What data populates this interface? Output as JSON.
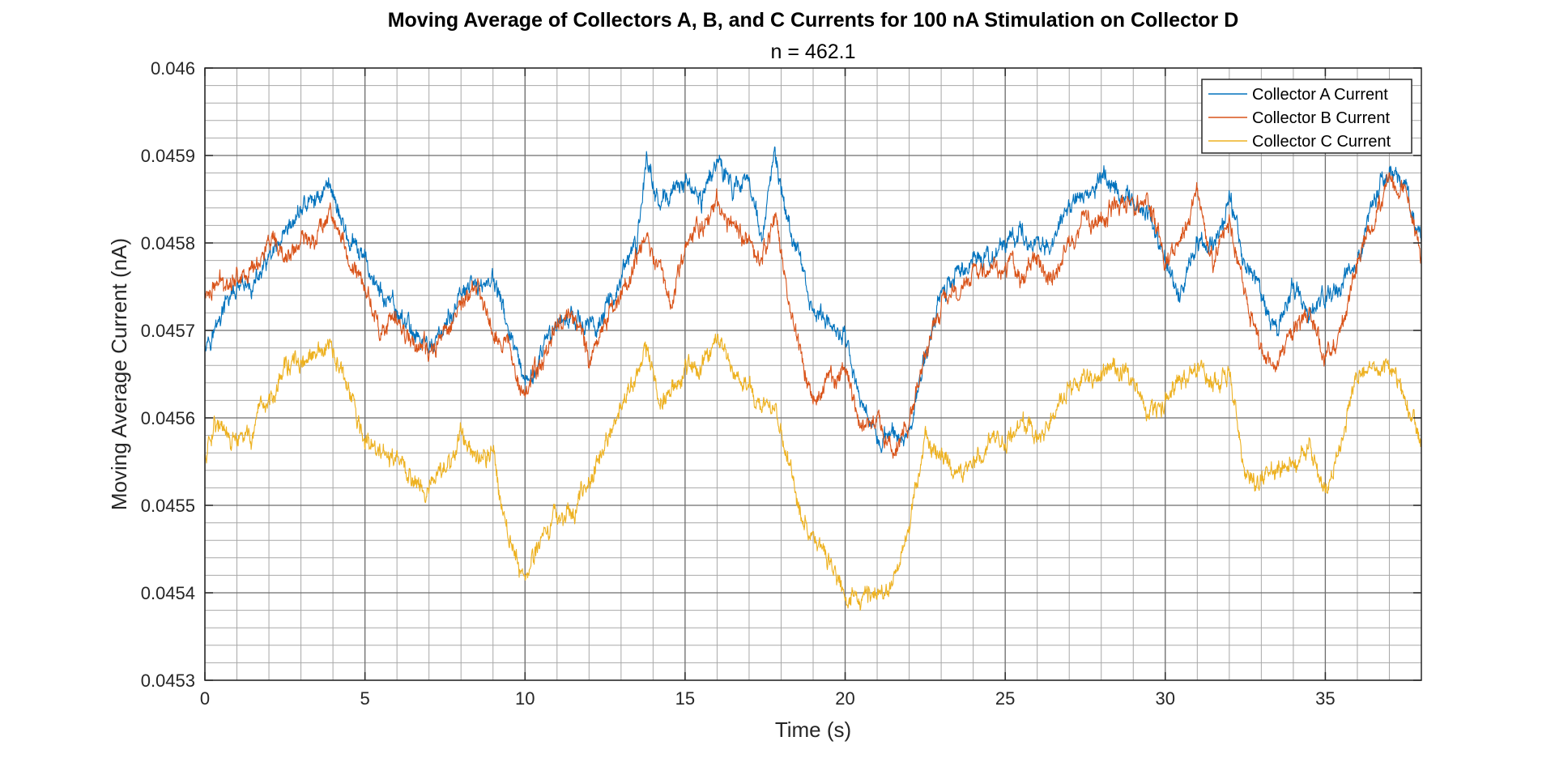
{
  "chart_data": {
    "type": "line",
    "title": "Moving Average of Collectors A, B, and C Currents for 100 nA Stimulation on Collector D",
    "subtitle": "n = 462.1",
    "xlabel": "Time (s)",
    "ylabel": "Moving Average Current (nA)",
    "xlim": [
      0,
      38
    ],
    "ylim": [
      0.0453,
      0.046
    ],
    "x_ticks": [
      0,
      5,
      10,
      15,
      20,
      25,
      30,
      35
    ],
    "y_ticks": [
      0.0453,
      0.0454,
      0.0455,
      0.0456,
      0.0457,
      0.0458,
      0.0459,
      0.046
    ],
    "x_tick_labels": [
      "0",
      "5",
      "10",
      "15",
      "20",
      "25",
      "30",
      "35"
    ],
    "y_tick_labels": [
      "0.0453",
      "0.0454",
      "0.0455",
      "0.0456",
      "0.0457",
      "0.0458",
      "0.0459",
      "0.046"
    ],
    "grid": true,
    "minor_grid": true,
    "legend_position": "top-right",
    "series": [
      {
        "name": "Collector A Current",
        "color": "#0072BD",
        "x": [
          0,
          0.3,
          0.8,
          1.5,
          2.0,
          2.5,
          3.0,
          3.5,
          3.9,
          4.5,
          5.0,
          5.5,
          6.0,
          6.5,
          7.0,
          7.5,
          8.0,
          8.5,
          9.0,
          9.5,
          10.0,
          10.5,
          11.0,
          11.5,
          12.0,
          12.5,
          13.0,
          13.5,
          13.8,
          14.2,
          14.6,
          15.0,
          15.5,
          16.0,
          16.5,
          17.0,
          17.4,
          17.8,
          18.2,
          18.6,
          19.0,
          19.5,
          20.0,
          20.5,
          21.0,
          21.5,
          22.0,
          22.5,
          23.0,
          23.5,
          24.0,
          24.5,
          25.0,
          25.5,
          26.0,
          26.5,
          27.0,
          27.5,
          28.0,
          28.5,
          29.0,
          29.5,
          30.0,
          30.5,
          31.0,
          31.5,
          32.0,
          32.5,
          33.0,
          33.5,
          34.0,
          34.5,
          35.0,
          35.5,
          36.0,
          36.5,
          37.0,
          37.5,
          38.0
        ],
        "y": [
          0.04569,
          0.0457,
          0.04574,
          0.04575,
          0.04578,
          0.0458,
          0.04584,
          0.04585,
          0.04587,
          0.0458,
          0.04578,
          0.04574,
          0.04572,
          0.0457,
          0.04568,
          0.0457,
          0.04574,
          0.04575,
          0.04576,
          0.0457,
          0.04563,
          0.04567,
          0.04571,
          0.04572,
          0.0457,
          0.04572,
          0.04576,
          0.0458,
          0.0459,
          0.04584,
          0.04586,
          0.04587,
          0.04585,
          0.0459,
          0.04586,
          0.04588,
          0.0458,
          0.0459,
          0.04582,
          0.04578,
          0.04572,
          0.04571,
          0.04569,
          0.04562,
          0.04558,
          0.04558,
          0.04558,
          0.04567,
          0.04575,
          0.04576,
          0.04578,
          0.04578,
          0.0458,
          0.04581,
          0.0458,
          0.0458,
          0.04585,
          0.04584,
          0.04588,
          0.04586,
          0.04585,
          0.04583,
          0.04578,
          0.04574,
          0.0458,
          0.04579,
          0.04585,
          0.04578,
          0.04574,
          0.0457,
          0.04575,
          0.04572,
          0.04574,
          0.04575,
          0.04578,
          0.04585,
          0.04588,
          0.04586,
          0.0458
        ]
      },
      {
        "name": "Collector B Current",
        "color": "#D95319",
        "x": [
          0,
          0.3,
          0.8,
          1.5,
          2.0,
          2.5,
          3.0,
          3.5,
          3.9,
          4.5,
          5.0,
          5.5,
          6.0,
          6.5,
          7.0,
          7.5,
          8.0,
          8.5,
          9.0,
          9.5,
          10.0,
          10.5,
          11.0,
          11.5,
          12.0,
          12.5,
          13.0,
          13.5,
          13.8,
          14.2,
          14.6,
          15.0,
          15.5,
          16.0,
          16.5,
          17.0,
          17.4,
          17.8,
          18.2,
          18.6,
          19.0,
          19.5,
          20.0,
          20.5,
          21.0,
          21.5,
          22.0,
          22.5,
          23.0,
          23.5,
          24.0,
          24.5,
          25.0,
          25.5,
          26.0,
          26.5,
          27.0,
          27.5,
          28.0,
          28.5,
          29.0,
          29.5,
          30.0,
          30.5,
          31.0,
          31.5,
          32.0,
          32.5,
          33.0,
          33.5,
          34.0,
          34.5,
          35.0,
          35.5,
          36.0,
          36.5,
          37.0,
          37.5,
          38.0
        ],
        "y": [
          0.04574,
          0.04575,
          0.04576,
          0.04577,
          0.0458,
          0.04578,
          0.0458,
          0.04581,
          0.04584,
          0.04578,
          0.04575,
          0.0457,
          0.04571,
          0.04569,
          0.04567,
          0.0457,
          0.04573,
          0.04575,
          0.0457,
          0.04568,
          0.04563,
          0.04566,
          0.04571,
          0.04572,
          0.04567,
          0.04571,
          0.04574,
          0.04578,
          0.0458,
          0.04578,
          0.04573,
          0.0458,
          0.04582,
          0.04585,
          0.04582,
          0.0458,
          0.04578,
          0.04583,
          0.04574,
          0.04568,
          0.04562,
          0.04564,
          0.04565,
          0.04559,
          0.04559,
          0.04556,
          0.04559,
          0.04567,
          0.04573,
          0.04575,
          0.04577,
          0.04577,
          0.04578,
          0.04576,
          0.04578,
          0.04576,
          0.0458,
          0.04583,
          0.04582,
          0.04585,
          0.04584,
          0.04585,
          0.04578,
          0.0458,
          0.04586,
          0.04578,
          0.04582,
          0.04574,
          0.04568,
          0.04566,
          0.0457,
          0.04572,
          0.04567,
          0.0457,
          0.04578,
          0.04582,
          0.04588,
          0.04586,
          0.04578
        ]
      },
      {
        "name": "Collector C Current",
        "color": "#EDB120",
        "x": [
          0,
          0.3,
          0.8,
          1.5,
          2.0,
          2.5,
          3.0,
          3.5,
          3.9,
          4.5,
          5.0,
          5.5,
          6.0,
          6.5,
          7.0,
          7.5,
          8.0,
          8.5,
          9.0,
          9.5,
          10.0,
          10.5,
          11.0,
          11.5,
          12.0,
          12.5,
          13.0,
          13.5,
          13.8,
          14.2,
          14.6,
          15.0,
          15.5,
          16.0,
          16.5,
          17.0,
          17.4,
          17.8,
          18.2,
          18.6,
          19.0,
          19.5,
          20.0,
          20.5,
          21.0,
          21.5,
          22.0,
          22.5,
          23.0,
          23.5,
          24.0,
          24.5,
          25.0,
          25.5,
          26.0,
          26.5,
          27.0,
          27.5,
          28.0,
          28.5,
          29.0,
          29.5,
          30.0,
          30.5,
          31.0,
          31.5,
          32.0,
          32.5,
          33.0,
          33.5,
          34.0,
          34.5,
          35.0,
          35.5,
          36.0,
          36.5,
          37.0,
          37.5,
          38.0
        ],
        "y": [
          0.04555,
          0.0456,
          0.04557,
          0.04558,
          0.04562,
          0.04566,
          0.04566,
          0.04567,
          0.04568,
          0.04563,
          0.04557,
          0.04556,
          0.04555,
          0.04553,
          0.04552,
          0.04554,
          0.04558,
          0.04556,
          0.04556,
          0.04546,
          0.04542,
          0.04546,
          0.04549,
          0.04549,
          0.04553,
          0.04557,
          0.04561,
          0.04565,
          0.04568,
          0.04562,
          0.04563,
          0.04566,
          0.04566,
          0.0457,
          0.04565,
          0.04564,
          0.04561,
          0.04561,
          0.04555,
          0.04549,
          0.04546,
          0.04544,
          0.0454,
          0.04539,
          0.0454,
          0.04541,
          0.04548,
          0.04557,
          0.04556,
          0.04553,
          0.04555,
          0.04557,
          0.04557,
          0.0456,
          0.04558,
          0.0456,
          0.04564,
          0.04565,
          0.04565,
          0.04566,
          0.04564,
          0.0456,
          0.04562,
          0.04564,
          0.04566,
          0.04564,
          0.04565,
          0.04553,
          0.04553,
          0.04554,
          0.04555,
          0.04557,
          0.04551,
          0.04557,
          0.04565,
          0.04566,
          0.04566,
          0.04562,
          0.04558
        ]
      }
    ]
  }
}
